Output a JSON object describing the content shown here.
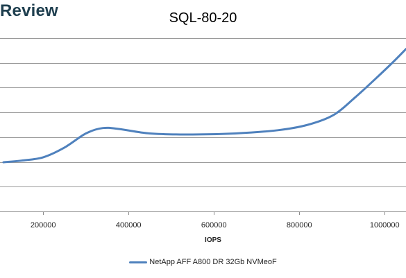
{
  "brand": "Review",
  "chart_data": {
    "type": "line",
    "title": "SQL-80-20",
    "xlabel": "IOPS",
    "ylabel": "",
    "xlim": [
      107000,
      1050000
    ],
    "ylim": [
      0,
      8
    ],
    "x_ticks": [
      200000,
      400000,
      600000,
      800000,
      1000000
    ],
    "x_tick_labels": [
      "200000",
      "400000",
      "600000",
      "800000",
      "1000000"
    ],
    "y_gridlines": 7,
    "grid": true,
    "legend": "bottom",
    "series": [
      {
        "name": "NetApp AFF A800 DR 32Gb NVMeoF",
        "color": "#4f81bd",
        "x": [
          107000,
          150000,
          200000,
          250000,
          300000,
          340000,
          380000,
          450000,
          550000,
          650000,
          750000,
          820000,
          880000,
          930000,
          980000,
          1020000,
          1050000
        ],
        "y": [
          2.27,
          2.35,
          2.5,
          2.95,
          3.6,
          3.85,
          3.8,
          3.6,
          3.55,
          3.6,
          3.75,
          4.0,
          4.45,
          5.25,
          6.15,
          6.9,
          7.5
        ]
      }
    ]
  }
}
